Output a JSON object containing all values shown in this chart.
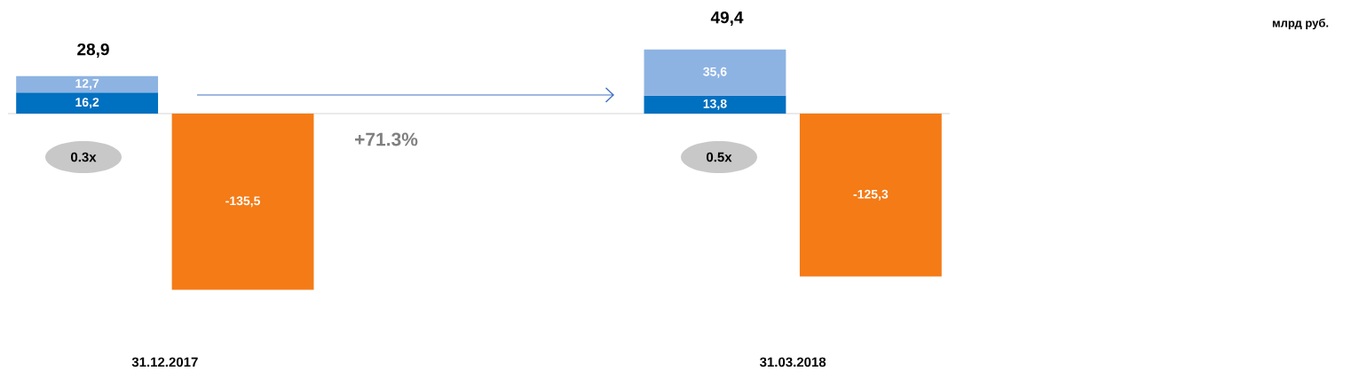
{
  "chart_data": {
    "type": "bar",
    "stacked": true,
    "categories": [
      "31.12.2017",
      "31.03.2018"
    ],
    "series": [
      {
        "color": "#0070c0",
        "values": [
          16.2,
          13.8
        ],
        "value_labels": [
          "16,2",
          "13,8"
        ]
      },
      {
        "color": "#8db3e2",
        "values": [
          12.7,
          35.6
        ],
        "value_labels": [
          "12,7",
          "35,6"
        ]
      },
      {
        "color": "#f47b16",
        "values": [
          -135.5,
          -125.3
        ],
        "value_labels": [
          "-135,5",
          "-125,3"
        ]
      }
    ],
    "tick_labels": "x",
    "annotations": [
      "млрд руб.",
      "+71.3%",
      "0.3x",
      "0.5x",
      "28,9",
      "49,4"
    ]
  }
}
